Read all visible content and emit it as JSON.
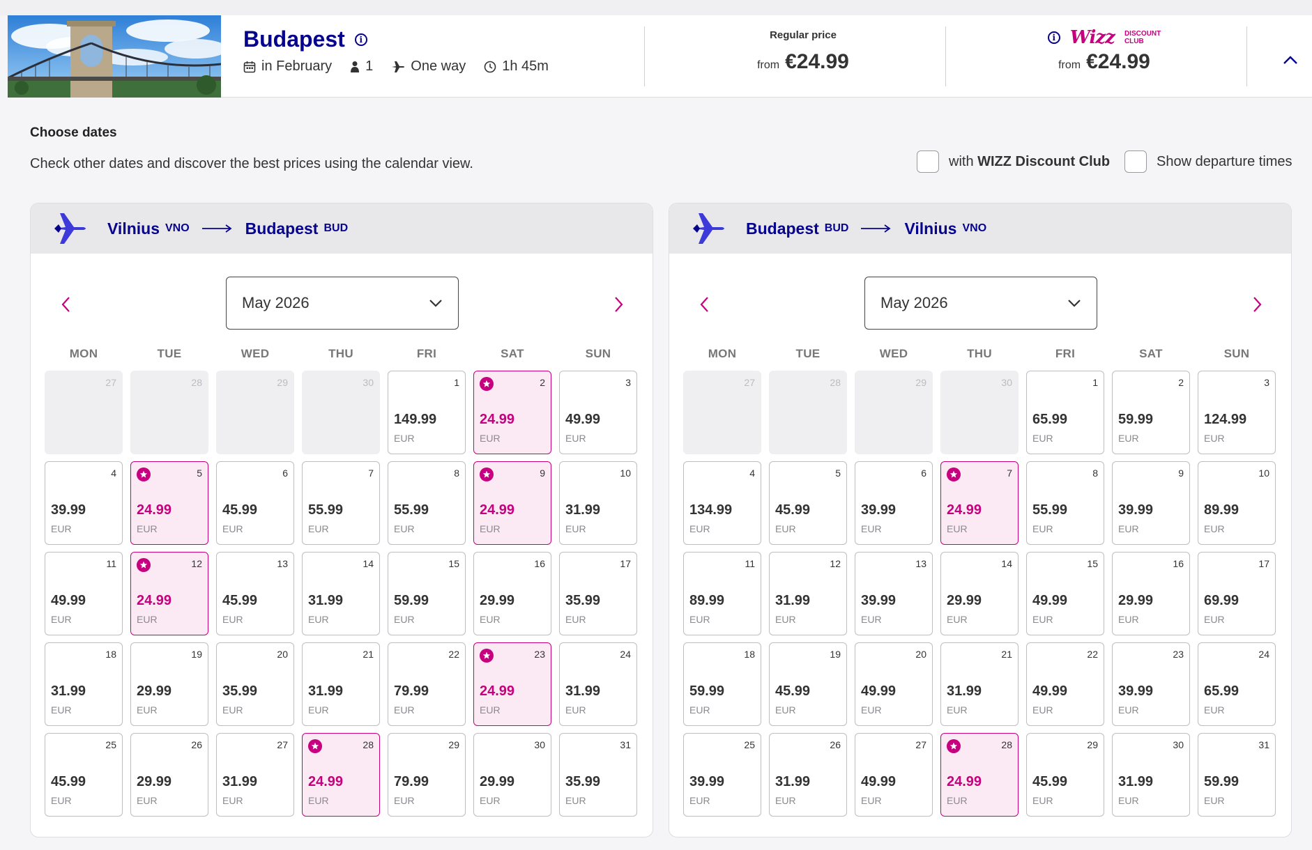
{
  "header": {
    "destination": "Budapest",
    "when": "in February",
    "passengers": "1",
    "trip_type": "One way",
    "duration": "1h 45m",
    "regular_label": "Regular price",
    "regular_from": "from",
    "regular_price": "€24.99",
    "club_logo_word": "Wizz",
    "club_logo_line1": "DISCOUNT",
    "club_logo_line2": "CLUB",
    "club_from": "from",
    "club_price": "€24.99"
  },
  "section": {
    "title": "Choose dates",
    "subtitle": "Check other dates and discover the best prices using the calendar view.",
    "wdc_checkbox_prefix": "with ",
    "wdc_checkbox_bold": "WIZZ Discount Club",
    "times_checkbox": "Show departure times"
  },
  "colors": {
    "brand_navy": "#06038d",
    "brand_magenta": "#c6007e"
  },
  "weekdays": [
    "MON",
    "TUE",
    "WED",
    "THU",
    "FRI",
    "SAT",
    "SUN"
  ],
  "currency": "EUR",
  "calendars": [
    {
      "from_city": "Vilnius",
      "from_code": "VNO",
      "to_city": "Budapest",
      "to_code": "BUD",
      "month": "May 2026",
      "days": [
        {
          "d": "27",
          "p": "",
          "s": "disabled"
        },
        {
          "d": "28",
          "p": "",
          "s": "disabled"
        },
        {
          "d": "29",
          "p": "",
          "s": "disabled"
        },
        {
          "d": "30",
          "p": "",
          "s": "disabled"
        },
        {
          "d": "1",
          "p": "149.99",
          "s": ""
        },
        {
          "d": "2",
          "p": "24.99",
          "s": "promo"
        },
        {
          "d": "3",
          "p": "49.99",
          "s": ""
        },
        {
          "d": "4",
          "p": "39.99",
          "s": ""
        },
        {
          "d": "5",
          "p": "24.99",
          "s": "promo"
        },
        {
          "d": "6",
          "p": "45.99",
          "s": ""
        },
        {
          "d": "7",
          "p": "55.99",
          "s": ""
        },
        {
          "d": "8",
          "p": "55.99",
          "s": ""
        },
        {
          "d": "9",
          "p": "24.99",
          "s": "promo"
        },
        {
          "d": "10",
          "p": "31.99",
          "s": ""
        },
        {
          "d": "11",
          "p": "49.99",
          "s": ""
        },
        {
          "d": "12",
          "p": "24.99",
          "s": "promo"
        },
        {
          "d": "13",
          "p": "45.99",
          "s": ""
        },
        {
          "d": "14",
          "p": "31.99",
          "s": ""
        },
        {
          "d": "15",
          "p": "59.99",
          "s": ""
        },
        {
          "d": "16",
          "p": "29.99",
          "s": ""
        },
        {
          "d": "17",
          "p": "35.99",
          "s": ""
        },
        {
          "d": "18",
          "p": "31.99",
          "s": ""
        },
        {
          "d": "19",
          "p": "29.99",
          "s": ""
        },
        {
          "d": "20",
          "p": "35.99",
          "s": ""
        },
        {
          "d": "21",
          "p": "31.99",
          "s": ""
        },
        {
          "d": "22",
          "p": "79.99",
          "s": ""
        },
        {
          "d": "23",
          "p": "24.99",
          "s": "promo"
        },
        {
          "d": "24",
          "p": "31.99",
          "s": ""
        },
        {
          "d": "25",
          "p": "45.99",
          "s": ""
        },
        {
          "d": "26",
          "p": "29.99",
          "s": ""
        },
        {
          "d": "27",
          "p": "31.99",
          "s": ""
        },
        {
          "d": "28",
          "p": "24.99",
          "s": "promo"
        },
        {
          "d": "29",
          "p": "79.99",
          "s": ""
        },
        {
          "d": "30",
          "p": "29.99",
          "s": ""
        },
        {
          "d": "31",
          "p": "35.99",
          "s": ""
        }
      ]
    },
    {
      "from_city": "Budapest",
      "from_code": "BUD",
      "to_city": "Vilnius",
      "to_code": "VNO",
      "month": "May 2026",
      "days": [
        {
          "d": "27",
          "p": "",
          "s": "disabled"
        },
        {
          "d": "28",
          "p": "",
          "s": "disabled"
        },
        {
          "d": "29",
          "p": "",
          "s": "disabled"
        },
        {
          "d": "30",
          "p": "",
          "s": "disabled"
        },
        {
          "d": "1",
          "p": "65.99",
          "s": ""
        },
        {
          "d": "2",
          "p": "59.99",
          "s": ""
        },
        {
          "d": "3",
          "p": "124.99",
          "s": ""
        },
        {
          "d": "4",
          "p": "134.99",
          "s": ""
        },
        {
          "d": "5",
          "p": "45.99",
          "s": ""
        },
        {
          "d": "6",
          "p": "39.99",
          "s": ""
        },
        {
          "d": "7",
          "p": "24.99",
          "s": "promo"
        },
        {
          "d": "8",
          "p": "55.99",
          "s": ""
        },
        {
          "d": "9",
          "p": "39.99",
          "s": ""
        },
        {
          "d": "10",
          "p": "89.99",
          "s": ""
        },
        {
          "d": "11",
          "p": "89.99",
          "s": ""
        },
        {
          "d": "12",
          "p": "31.99",
          "s": ""
        },
        {
          "d": "13",
          "p": "39.99",
          "s": ""
        },
        {
          "d": "14",
          "p": "29.99",
          "s": ""
        },
        {
          "d": "15",
          "p": "49.99",
          "s": ""
        },
        {
          "d": "16",
          "p": "29.99",
          "s": ""
        },
        {
          "d": "17",
          "p": "69.99",
          "s": ""
        },
        {
          "d": "18",
          "p": "59.99",
          "s": ""
        },
        {
          "d": "19",
          "p": "45.99",
          "s": ""
        },
        {
          "d": "20",
          "p": "49.99",
          "s": ""
        },
        {
          "d": "21",
          "p": "31.99",
          "s": ""
        },
        {
          "d": "22",
          "p": "49.99",
          "s": ""
        },
        {
          "d": "23",
          "p": "39.99",
          "s": ""
        },
        {
          "d": "24",
          "p": "65.99",
          "s": ""
        },
        {
          "d": "25",
          "p": "39.99",
          "s": ""
        },
        {
          "d": "26",
          "p": "31.99",
          "s": ""
        },
        {
          "d": "27",
          "p": "49.99",
          "s": ""
        },
        {
          "d": "28",
          "p": "24.99",
          "s": "promo"
        },
        {
          "d": "29",
          "p": "45.99",
          "s": ""
        },
        {
          "d": "30",
          "p": "31.99",
          "s": ""
        },
        {
          "d": "31",
          "p": "59.99",
          "s": ""
        }
      ]
    }
  ]
}
